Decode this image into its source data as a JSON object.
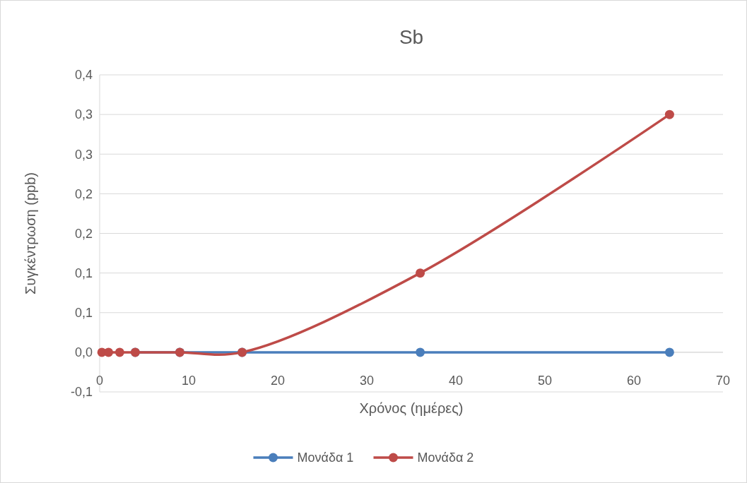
{
  "chart_data": {
    "type": "line",
    "title": "Sb",
    "xlabel": "Χρόνος (ημέρες)",
    "ylabel": "Συγκέντρωση (ppb)",
    "x": [
      0.25,
      1,
      2.25,
      4,
      9,
      16,
      36,
      64
    ],
    "series": [
      {
        "name": "Μονάδα 1",
        "color": "#4a7ebb",
        "values": [
          null,
          null,
          null,
          0,
          0,
          0,
          0,
          0
        ]
      },
      {
        "name": "Μονάδα 2",
        "color": "#be4b48",
        "values": [
          0,
          0,
          0,
          0,
          0,
          0,
          0.1,
          0.3
        ]
      }
    ],
    "xlim": [
      0,
      70
    ],
    "xticks": [
      0,
      10,
      20,
      30,
      40,
      50,
      60,
      70
    ],
    "ylim": [
      -0.05,
      0.35
    ],
    "yticks": [
      {
        "value": -0.05,
        "label": "-0,1"
      },
      {
        "value": 0,
        "label": "0,0"
      },
      {
        "value": 0.05,
        "label": "0,1"
      },
      {
        "value": 0.1,
        "label": "0,1"
      },
      {
        "value": 0.15,
        "label": "0,2"
      },
      {
        "value": 0.2,
        "label": "0,2"
      },
      {
        "value": 0.25,
        "label": "0,3"
      },
      {
        "value": 0.3,
        "label": "0,3"
      },
      {
        "value": 0.35,
        "label": "0,4"
      }
    ],
    "grid": "y",
    "legend": "bottom",
    "marker": "circle",
    "line_style": "solid"
  }
}
